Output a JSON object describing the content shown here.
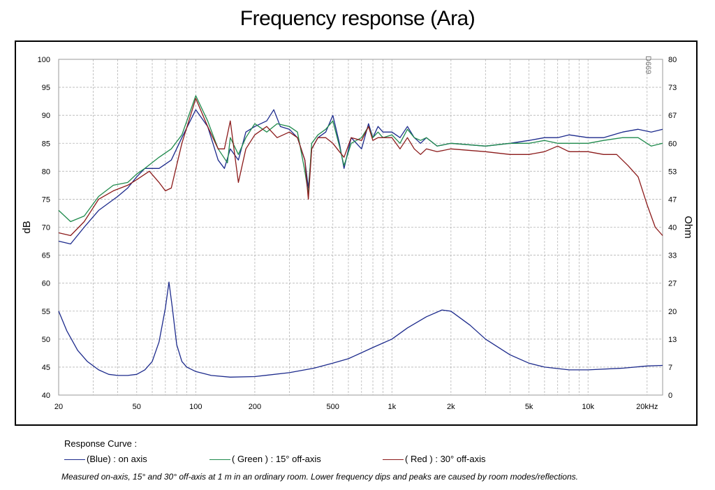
{
  "title": "Frequency response  (Ara)",
  "watermark": "D669",
  "legend": {
    "title": "Response Curve :",
    "entries": [
      {
        "label": "(Blue)  : on axis",
        "color": "#1c2a8c"
      },
      {
        "label": "( Green ) : 15° off-axis",
        "color": "#1f8a4c"
      },
      {
        "label": "( Red ) : 30° off-axis",
        "color": "#8b1a1a"
      }
    ]
  },
  "caption": "Measured on-axis, 15° and 30° off-axis at 1 m in an ordinary room. Lower frequency dips and peaks are caused by room modes/reflections.",
  "chart_data": {
    "type": "line",
    "xscale": "log",
    "xlim": [
      20,
      24000
    ],
    "ylim": [
      40,
      100
    ],
    "ylabel": "dB",
    "y2label": "Ohm",
    "grid": true,
    "x_ticks": [
      {
        "value": 20,
        "label": "20"
      },
      {
        "value": 50,
        "label": "50"
      },
      {
        "value": 100,
        "label": "100"
      },
      {
        "value": 200,
        "label": "200"
      },
      {
        "value": 500,
        "label": "500"
      },
      {
        "value": 1000,
        "label": "1k"
      },
      {
        "value": 2000,
        "label": "2k"
      },
      {
        "value": 5000,
        "label": "5k"
      },
      {
        "value": 10000,
        "label": "10k"
      },
      {
        "value": 20000,
        "label": "20kHz"
      }
    ],
    "y_ticks": [
      100,
      95,
      90,
      85,
      80,
      75,
      70,
      65,
      60,
      55,
      50,
      45,
      40
    ],
    "y2_ticks": [
      {
        "value": 100,
        "label": "80"
      },
      {
        "value": 95,
        "label": "73"
      },
      {
        "value": 90,
        "label": "67"
      },
      {
        "value": 85,
        "label": "60"
      },
      {
        "value": 80,
        "label": "53"
      },
      {
        "value": 75,
        "label": "47"
      },
      {
        "value": 70,
        "label": "40"
      },
      {
        "value": 65,
        "label": "33"
      },
      {
        "value": 60,
        "label": "27"
      },
      {
        "value": 55,
        "label": "20"
      },
      {
        "value": 50,
        "label": "13"
      },
      {
        "value": 45,
        "label": "7"
      },
      {
        "value": 40,
        "label": "0"
      }
    ],
    "series": [
      {
        "name": "(Blue)  : on axis",
        "color": "#1c2a8c",
        "points": [
          [
            20,
            67.5
          ],
          [
            23,
            67
          ],
          [
            27,
            70
          ],
          [
            32,
            73
          ],
          [
            40,
            75.5
          ],
          [
            45,
            77
          ],
          [
            50,
            79
          ],
          [
            55,
            80.5
          ],
          [
            65,
            80.5
          ],
          [
            75,
            82
          ],
          [
            85,
            86
          ],
          [
            100,
            91
          ],
          [
            115,
            88
          ],
          [
            130,
            82
          ],
          [
            140,
            80.5
          ],
          [
            150,
            84
          ],
          [
            165,
            82
          ],
          [
            180,
            87
          ],
          [
            200,
            88
          ],
          [
            230,
            89
          ],
          [
            250,
            91
          ],
          [
            270,
            88
          ],
          [
            300,
            87.5
          ],
          [
            330,
            86
          ],
          [
            360,
            82
          ],
          [
            375,
            77
          ],
          [
            390,
            84
          ],
          [
            420,
            86
          ],
          [
            460,
            87
          ],
          [
            500,
            90
          ],
          [
            540,
            85
          ],
          [
            570,
            80.5
          ],
          [
            620,
            86
          ],
          [
            700,
            84
          ],
          [
            760,
            88.5
          ],
          [
            800,
            86
          ],
          [
            850,
            88
          ],
          [
            900,
            87
          ],
          [
            1000,
            87
          ],
          [
            1100,
            86
          ],
          [
            1200,
            88
          ],
          [
            1300,
            86
          ],
          [
            1400,
            85
          ],
          [
            1500,
            86
          ],
          [
            1700,
            84.5
          ],
          [
            2000,
            85
          ],
          [
            3000,
            84.5
          ],
          [
            4000,
            85
          ],
          [
            5000,
            85.5
          ],
          [
            6000,
            86
          ],
          [
            7000,
            86
          ],
          [
            8000,
            86.5
          ],
          [
            10000,
            86
          ],
          [
            12000,
            86
          ],
          [
            15000,
            87
          ],
          [
            18000,
            87.5
          ],
          [
            21000,
            87
          ],
          [
            24000,
            87.5
          ]
        ]
      },
      {
        "name": "( Green ) : 15° off-axis",
        "color": "#1f8a4c",
        "points": [
          [
            20,
            73
          ],
          [
            23,
            71
          ],
          [
            27,
            72
          ],
          [
            32,
            75.5
          ],
          [
            38,
            77.5
          ],
          [
            45,
            78
          ],
          [
            50,
            79.5
          ],
          [
            55,
            80.5
          ],
          [
            65,
            82.5
          ],
          [
            75,
            84
          ],
          [
            85,
            86.5
          ],
          [
            100,
            93.5
          ],
          [
            115,
            89
          ],
          [
            130,
            84
          ],
          [
            145,
            81.5
          ],
          [
            150,
            86
          ],
          [
            165,
            83
          ],
          [
            180,
            86
          ],
          [
            200,
            88.5
          ],
          [
            230,
            87
          ],
          [
            260,
            88.5
          ],
          [
            300,
            88
          ],
          [
            330,
            87
          ],
          [
            360,
            80
          ],
          [
            375,
            76
          ],
          [
            390,
            85
          ],
          [
            420,
            86.5
          ],
          [
            460,
            87.5
          ],
          [
            500,
            89
          ],
          [
            540,
            84.5
          ],
          [
            570,
            81
          ],
          [
            620,
            85
          ],
          [
            700,
            86
          ],
          [
            760,
            88
          ],
          [
            800,
            86
          ],
          [
            850,
            87
          ],
          [
            900,
            86
          ],
          [
            1000,
            86.5
          ],
          [
            1100,
            85
          ],
          [
            1200,
            87.5
          ],
          [
            1300,
            86
          ],
          [
            1400,
            85.5
          ],
          [
            1500,
            86
          ],
          [
            1700,
            84.5
          ],
          [
            2000,
            85
          ],
          [
            3000,
            84.5
          ],
          [
            4000,
            85
          ],
          [
            5000,
            85
          ],
          [
            6000,
            85.5
          ],
          [
            7000,
            85
          ],
          [
            8000,
            85
          ],
          [
            10000,
            85
          ],
          [
            12000,
            85.5
          ],
          [
            15000,
            86
          ],
          [
            18000,
            86
          ],
          [
            21000,
            84.5
          ],
          [
            24000,
            85
          ]
        ]
      },
      {
        "name": "( Red ) : 30° off-axis",
        "color": "#8b1a1a",
        "points": [
          [
            20,
            69
          ],
          [
            23,
            68.5
          ],
          [
            27,
            71
          ],
          [
            32,
            75
          ],
          [
            38,
            76.5
          ],
          [
            45,
            77.5
          ],
          [
            50,
            78.5
          ],
          [
            58,
            80
          ],
          [
            65,
            78
          ],
          [
            70,
            76.5
          ],
          [
            75,
            77
          ],
          [
            85,
            85
          ],
          [
            100,
            93
          ],
          [
            115,
            88
          ],
          [
            130,
            84
          ],
          [
            140,
            84
          ],
          [
            150,
            89
          ],
          [
            165,
            78
          ],
          [
            180,
            84
          ],
          [
            200,
            86.5
          ],
          [
            230,
            88
          ],
          [
            260,
            86
          ],
          [
            300,
            87
          ],
          [
            330,
            86
          ],
          [
            360,
            82
          ],
          [
            375,
            75
          ],
          [
            390,
            84
          ],
          [
            420,
            86
          ],
          [
            460,
            86
          ],
          [
            500,
            85
          ],
          [
            540,
            83.5
          ],
          [
            570,
            82.5
          ],
          [
            620,
            86
          ],
          [
            700,
            85.5
          ],
          [
            760,
            88
          ],
          [
            800,
            85.5
          ],
          [
            850,
            86
          ],
          [
            900,
            86
          ],
          [
            1000,
            86
          ],
          [
            1100,
            84
          ],
          [
            1200,
            86
          ],
          [
            1300,
            84
          ],
          [
            1400,
            83
          ],
          [
            1500,
            84
          ],
          [
            1700,
            83.5
          ],
          [
            2000,
            84
          ],
          [
            3000,
            83.5
          ],
          [
            4000,
            83
          ],
          [
            5000,
            83
          ],
          [
            6000,
            83.5
          ],
          [
            7000,
            84.5
          ],
          [
            8000,
            83.5
          ],
          [
            10000,
            83.5
          ],
          [
            12000,
            83
          ],
          [
            14000,
            83
          ],
          [
            16000,
            81
          ],
          [
            18000,
            79
          ],
          [
            20000,
            74
          ],
          [
            22000,
            70
          ],
          [
            24000,
            68.5
          ]
        ]
      },
      {
        "name": "impedance",
        "color": "#1c2a8c",
        "points": [
          [
            20,
            55
          ],
          [
            22,
            51.5
          ],
          [
            25,
            48
          ],
          [
            28,
            46
          ],
          [
            32,
            44.5
          ],
          [
            36,
            43.7
          ],
          [
            40,
            43.5
          ],
          [
            45,
            43.5
          ],
          [
            50,
            43.7
          ],
          [
            55,
            44.5
          ],
          [
            60,
            46
          ],
          [
            65,
            49.5
          ],
          [
            70,
            55.5
          ],
          [
            73,
            60.2
          ],
          [
            76,
            55.5
          ],
          [
            80,
            49
          ],
          [
            85,
            46
          ],
          [
            90,
            45
          ],
          [
            100,
            44.2
          ],
          [
            120,
            43.5
          ],
          [
            150,
            43.2
          ],
          [
            200,
            43.3
          ],
          [
            300,
            44
          ],
          [
            400,
            44.8
          ],
          [
            500,
            45.7
          ],
          [
            600,
            46.5
          ],
          [
            800,
            48.5
          ],
          [
            1000,
            50
          ],
          [
            1200,
            52
          ],
          [
            1500,
            54
          ],
          [
            1800,
            55.2
          ],
          [
            2000,
            55
          ],
          [
            2500,
            52.5
          ],
          [
            3000,
            50
          ],
          [
            4000,
            47.2
          ],
          [
            5000,
            45.7
          ],
          [
            6000,
            45
          ],
          [
            8000,
            44.5
          ],
          [
            10000,
            44.5
          ],
          [
            15000,
            44.8
          ],
          [
            20000,
            45.2
          ],
          [
            24000,
            45.3
          ]
        ]
      }
    ]
  }
}
